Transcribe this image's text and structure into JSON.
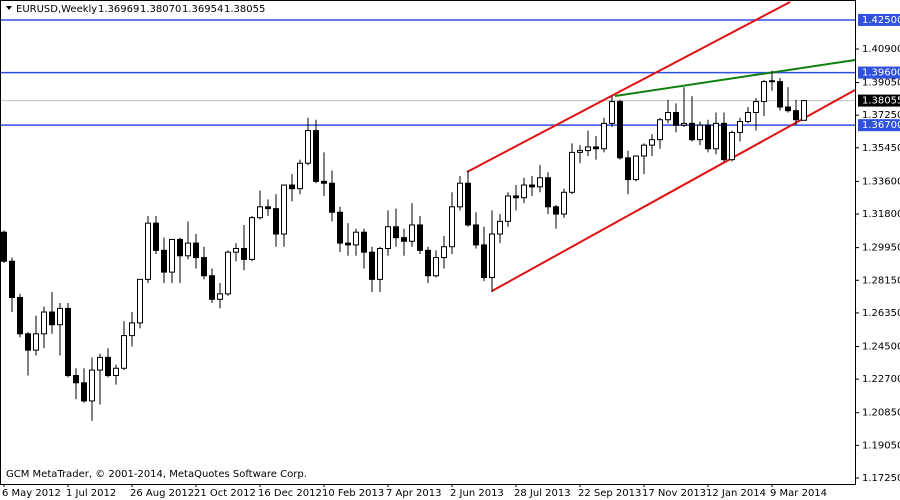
{
  "chart_data": {
    "type": "candlestick",
    "header": {
      "symbol": "EURUSD,Weekly",
      "ohlc": [
        "1.36969",
        "1.38070",
        "1.36954",
        "1.38055"
      ]
    },
    "footer": "GCM MetaTrader, © 2001-2014, MetaQuotes Software Corp.",
    "categories": [
      "6 May 2012",
      null,
      null,
      null,
      null,
      null,
      null,
      null,
      "1 Jul 2012",
      null,
      null,
      null,
      null,
      null,
      null,
      null,
      "26 Aug 2012",
      null,
      null,
      null,
      null,
      null,
      null,
      null,
      "21 Oct 2012",
      null,
      null,
      null,
      null,
      null,
      null,
      null,
      "16 Dec 2012",
      null,
      null,
      null,
      null,
      null,
      null,
      null,
      "10 Feb 2013",
      null,
      null,
      null,
      null,
      null,
      null,
      null,
      "7 Apr 2013",
      null,
      null,
      null,
      null,
      null,
      null,
      null,
      "2 Jun 2013",
      null,
      null,
      null,
      null,
      null,
      null,
      null,
      "28 Jul 2013",
      null,
      null,
      null,
      null,
      null,
      null,
      null,
      "22 Sep 2013",
      null,
      null,
      null,
      null,
      null,
      null,
      null,
      "17 Nov 2013",
      null,
      null,
      null,
      null,
      null,
      null,
      null,
      "12 Jan 2014",
      null,
      null,
      null,
      null,
      null,
      null,
      null,
      "9 Mar 2014",
      null,
      null,
      null,
      null
    ],
    "open": [
      1.308,
      1.292,
      1.272,
      1.252,
      1.243,
      1.252,
      1.264,
      1.257,
      1.266,
      1.229,
      1.225,
      1.215,
      1.232,
      1.239,
      1.229,
      1.233,
      1.251,
      1.258,
      1.282,
      1.313,
      1.298,
      1.286,
      1.304,
      1.295,
      1.302,
      1.294,
      1.284,
      1.271,
      1.274,
      1.297,
      1.299,
      1.293,
      1.316,
      1.322,
      1.321,
      1.307,
      1.334,
      1.332,
      1.346,
      1.364,
      1.336,
      1.335,
      1.319,
      1.302,
      1.301,
      1.308,
      1.297,
      1.282,
      1.299,
      1.311,
      1.305,
      1.303,
      1.312,
      1.298,
      1.284,
      1.294,
      1.3,
      1.322,
      1.335,
      1.312,
      1.301,
      1.283,
      1.307,
      1.314,
      1.328,
      1.327,
      1.334,
      1.333,
      1.338,
      1.322,
      1.318,
      1.33,
      1.352,
      1.353,
      1.355,
      1.354,
      1.368,
      1.38,
      1.349,
      1.337,
      1.35,
      1.356,
      1.359,
      1.37,
      1.374,
      1.367,
      1.368,
      1.359,
      1.367,
      1.354,
      1.368,
      1.348,
      1.363,
      1.369,
      1.374,
      1.38,
      1.391,
      1.391,
      1.377,
      1.375,
      1.36969
    ],
    "high": [
      1.309,
      1.294,
      1.274,
      1.253,
      1.262,
      1.267,
      1.275,
      1.269,
      1.269,
      1.233,
      1.233,
      1.239,
      1.241,
      1.244,
      1.235,
      1.259,
      1.264,
      1.282,
      1.317,
      1.317,
      1.305,
      1.304,
      1.305,
      1.314,
      1.307,
      1.3,
      1.288,
      1.28,
      1.298,
      1.302,
      1.312,
      1.317,
      1.331,
      1.326,
      1.329,
      1.334,
      1.34,
      1.348,
      1.371,
      1.37,
      1.352,
      1.342,
      1.322,
      1.313,
      1.31,
      1.31,
      1.3,
      1.3,
      1.32,
      1.321,
      1.31,
      1.324,
      1.317,
      1.3,
      1.298,
      1.306,
      1.33,
      1.339,
      1.342,
      1.319,
      1.311,
      1.32,
      1.318,
      1.33,
      1.334,
      1.338,
      1.339,
      1.345,
      1.341,
      1.323,
      1.332,
      1.357,
      1.356,
      1.364,
      1.361,
      1.371,
      1.383,
      1.381,
      1.353,
      1.35,
      1.357,
      1.362,
      1.371,
      1.381,
      1.379,
      1.388,
      1.383,
      1.369,
      1.37,
      1.374,
      1.374,
      1.364,
      1.371,
      1.377,
      1.382,
      1.392,
      1.397,
      1.393,
      1.388,
      1.381,
      1.3807
    ],
    "low": [
      1.291,
      1.264,
      1.25,
      1.229,
      1.24,
      1.244,
      1.252,
      1.24,
      1.228,
      1.216,
      1.214,
      1.204,
      1.213,
      1.228,
      1.224,
      1.232,
      1.245,
      1.255,
      1.28,
      1.296,
      1.28,
      1.28,
      1.28,
      1.293,
      1.288,
      1.282,
      1.269,
      1.266,
      1.273,
      1.292,
      1.287,
      1.292,
      1.315,
      1.317,
      1.3,
      1.3,
      1.325,
      1.329,
      1.345,
      1.335,
      1.328,
      1.314,
      1.297,
      1.295,
      1.295,
      1.288,
      1.275,
      1.275,
      1.295,
      1.3,
      1.295,
      1.3,
      1.296,
      1.28,
      1.283,
      1.288,
      1.296,
      1.32,
      1.311,
      1.299,
      1.281,
      1.275,
      1.302,
      1.311,
      1.32,
      1.324,
      1.328,
      1.33,
      1.318,
      1.31,
      1.316,
      1.329,
      1.346,
      1.35,
      1.348,
      1.352,
      1.366,
      1.348,
      1.329,
      1.336,
      1.34,
      1.35,
      1.354,
      1.368,
      1.363,
      1.366,
      1.358,
      1.356,
      1.352,
      1.351,
      1.347,
      1.347,
      1.358,
      1.368,
      1.364,
      1.372,
      1.386,
      1.375,
      1.374,
      1.367,
      1.36954
    ],
    "close": [
      1.292,
      1.272,
      1.252,
      1.243,
      1.252,
      1.264,
      1.257,
      1.266,
      1.229,
      1.225,
      1.215,
      1.232,
      1.239,
      1.229,
      1.233,
      1.251,
      1.258,
      1.282,
      1.313,
      1.298,
      1.286,
      1.304,
      1.295,
      1.302,
      1.294,
      1.284,
      1.271,
      1.274,
      1.297,
      1.299,
      1.293,
      1.316,
      1.322,
      1.321,
      1.307,
      1.334,
      1.332,
      1.346,
      1.364,
      1.336,
      1.335,
      1.319,
      1.302,
      1.301,
      1.308,
      1.297,
      1.282,
      1.299,
      1.311,
      1.305,
      1.303,
      1.312,
      1.298,
      1.284,
      1.294,
      1.3,
      1.322,
      1.335,
      1.312,
      1.301,
      1.283,
      1.307,
      1.314,
      1.328,
      1.327,
      1.334,
      1.333,
      1.338,
      1.322,
      1.318,
      1.33,
      1.352,
      1.353,
      1.355,
      1.354,
      1.368,
      1.38,
      1.349,
      1.337,
      1.35,
      1.356,
      1.359,
      1.37,
      1.374,
      1.367,
      1.368,
      1.359,
      1.367,
      1.354,
      1.368,
      1.348,
      1.363,
      1.369,
      1.374,
      1.38,
      1.391,
      1.3915,
      1.377,
      1.375,
      1.37,
      1.38055
    ],
    "up_color": "#ffffff",
    "down_color": "#000000",
    "edge_color": "#000000",
    "ylim": [
      1.1692,
      1.436
    ],
    "yticks": [
      {
        "value": 1.1725,
        "label": "1.17250"
      },
      {
        "value": 1.1905,
        "label": "1.19050"
      },
      {
        "value": 1.2085,
        "label": "1.20850"
      },
      {
        "value": 1.227,
        "label": "1.22700"
      },
      {
        "value": 1.245,
        "label": "1.24500"
      },
      {
        "value": 1.2635,
        "label": "1.26350"
      },
      {
        "value": 1.2815,
        "label": "1.28150"
      },
      {
        "value": 1.2995,
        "label": "1.29950"
      },
      {
        "value": 1.318,
        "label": "1.31800"
      },
      {
        "value": 1.336,
        "label": "1.33600"
      },
      {
        "value": 1.3545,
        "label": "1.35450"
      },
      {
        "value": 1.3725,
        "label": "1.37250"
      },
      {
        "value": 1.3905,
        "label": "1.39050"
      },
      {
        "value": 1.409,
        "label": "1.40900"
      }
    ],
    "levels": [
      {
        "value": 1.425,
        "label": "1.42500",
        "color": "#3050e0"
      },
      {
        "value": 1.396,
        "label": "1.39600",
        "color": "#3050e0"
      },
      {
        "value": 1.367,
        "label": "1.36700",
        "color": "#3050e0"
      },
      {
        "value": 1.38055,
        "label": "1.38055",
        "color": "#c0c0c0",
        "box": "#000000"
      }
    ]
  }
}
